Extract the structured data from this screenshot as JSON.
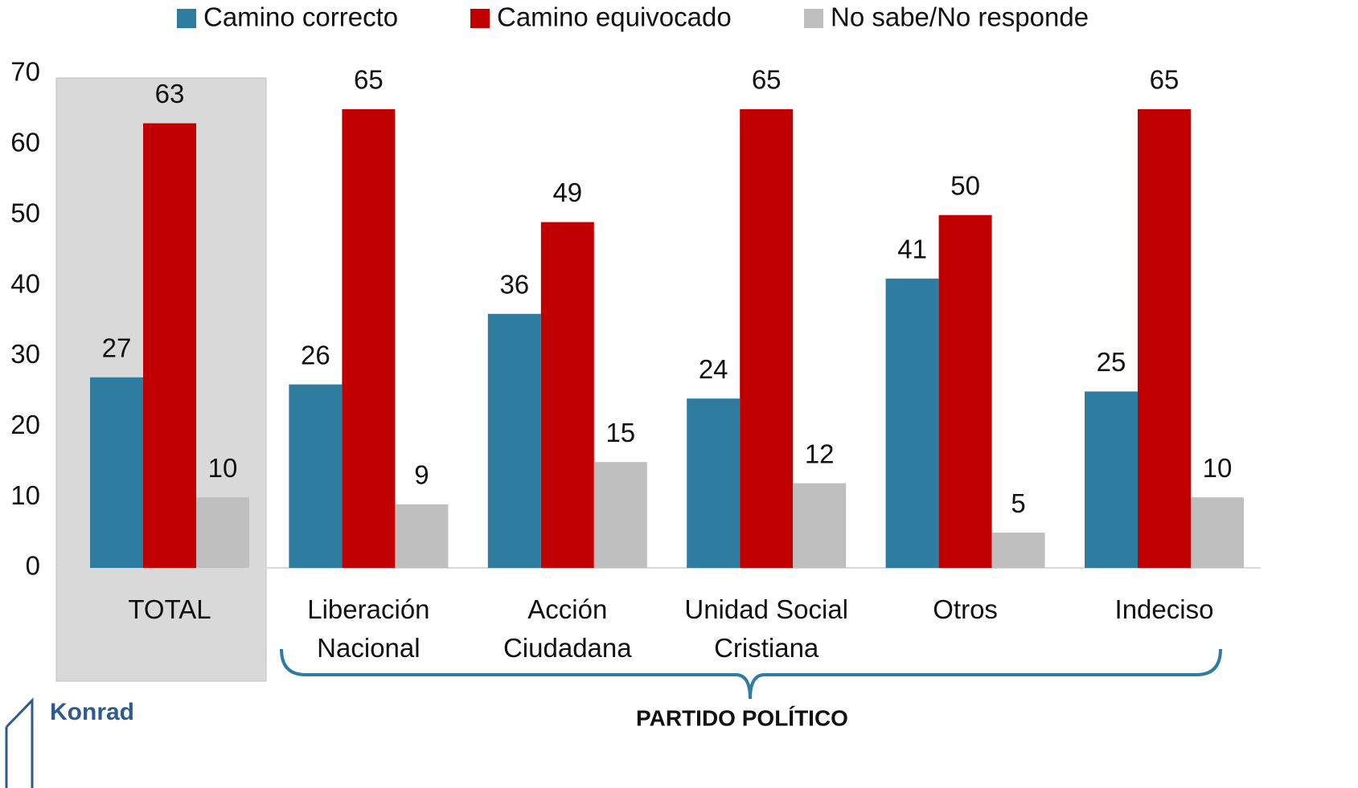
{
  "chart_data": {
    "type": "bar",
    "categories": [
      "TOTAL",
      "Liberación Nacional",
      "Acción Ciudadana",
      "Unidad Social Cristiana",
      "Otros",
      "Indeciso"
    ],
    "series": [
      {
        "name": "Camino correcto",
        "color": "#2e7ca0",
        "values": [
          27,
          26,
          36,
          24,
          41,
          25
        ]
      },
      {
        "name": "Camino equivocado",
        "color": "#c00000",
        "values": [
          63,
          65,
          49,
          65,
          50,
          65
        ]
      },
      {
        "name": "No sabe/No responde",
        "color": "#bfbfbf",
        "values": [
          10,
          9,
          15,
          12,
          5,
          10
        ]
      }
    ],
    "ylim": [
      0,
      70
    ],
    "yticks": [
      0,
      10,
      20,
      30,
      40,
      50,
      60,
      70
    ],
    "grid": false,
    "legend": "top",
    "annotation": "PARTIDO POLÍTICO",
    "logo_text": "Konrad"
  }
}
